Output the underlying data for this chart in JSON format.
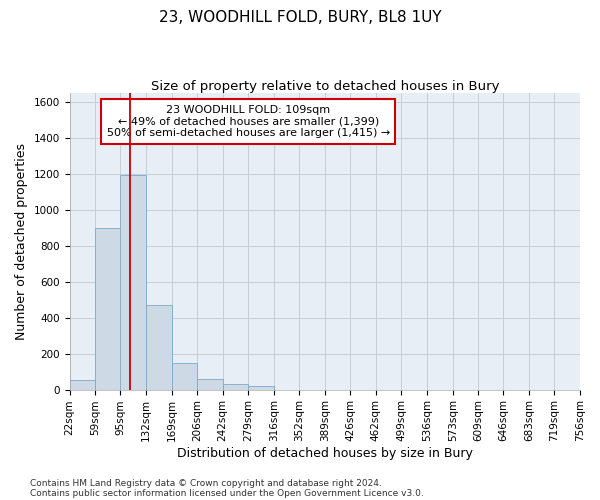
{
  "title": "23, WOODHILL FOLD, BURY, BL8 1UY",
  "subtitle": "Size of property relative to detached houses in Bury",
  "xlabel": "Distribution of detached houses by size in Bury",
  "ylabel": "Number of detached properties",
  "footnote1": "Contains HM Land Registry data © Crown copyright and database right 2024.",
  "footnote2": "Contains public sector information licensed under the Open Government Licence v3.0.",
  "annotation_line1": "23 WOODHILL FOLD: 109sqm",
  "annotation_line2": "← 49% of detached houses are smaller (1,399)",
  "annotation_line3": "50% of semi-detached houses are larger (1,415) →",
  "bar_color": "#cdd9e5",
  "bar_edge_color": "#7fa8c8",
  "red_line_x": 109,
  "bin_edges": [
    22,
    59,
    95,
    132,
    169,
    206,
    242,
    279,
    316,
    352,
    389,
    426,
    462,
    499,
    536,
    573,
    609,
    646,
    683,
    719,
    756
  ],
  "bin_labels": [
    "22sqm",
    "59sqm",
    "95sqm",
    "132sqm",
    "169sqm",
    "206sqm",
    "242sqm",
    "279sqm",
    "316sqm",
    "352sqm",
    "389sqm",
    "426sqm",
    "462sqm",
    "499sqm",
    "536sqm",
    "573sqm",
    "609sqm",
    "646sqm",
    "683sqm",
    "719sqm",
    "756sqm"
  ],
  "bar_heights": [
    55,
    900,
    1195,
    470,
    150,
    60,
    30,
    20,
    0,
    0,
    0,
    0,
    0,
    0,
    0,
    0,
    0,
    0,
    0,
    0
  ],
  "ylim": [
    0,
    1650
  ],
  "yticks": [
    0,
    200,
    400,
    600,
    800,
    1000,
    1200,
    1400,
    1600
  ],
  "background_color": "#ffffff",
  "plot_bg_color": "#e8eef5",
  "grid_color": "#c5cfd8",
  "annotation_box_color": "#ffffff",
  "annotation_box_edge": "#cc0000",
  "red_line_color": "#cc0000",
  "title_fontsize": 11,
  "subtitle_fontsize": 9.5,
  "axis_label_fontsize": 9,
  "tick_fontsize": 7.5,
  "annotation_fontsize": 8,
  "footnote_fontsize": 6.5
}
